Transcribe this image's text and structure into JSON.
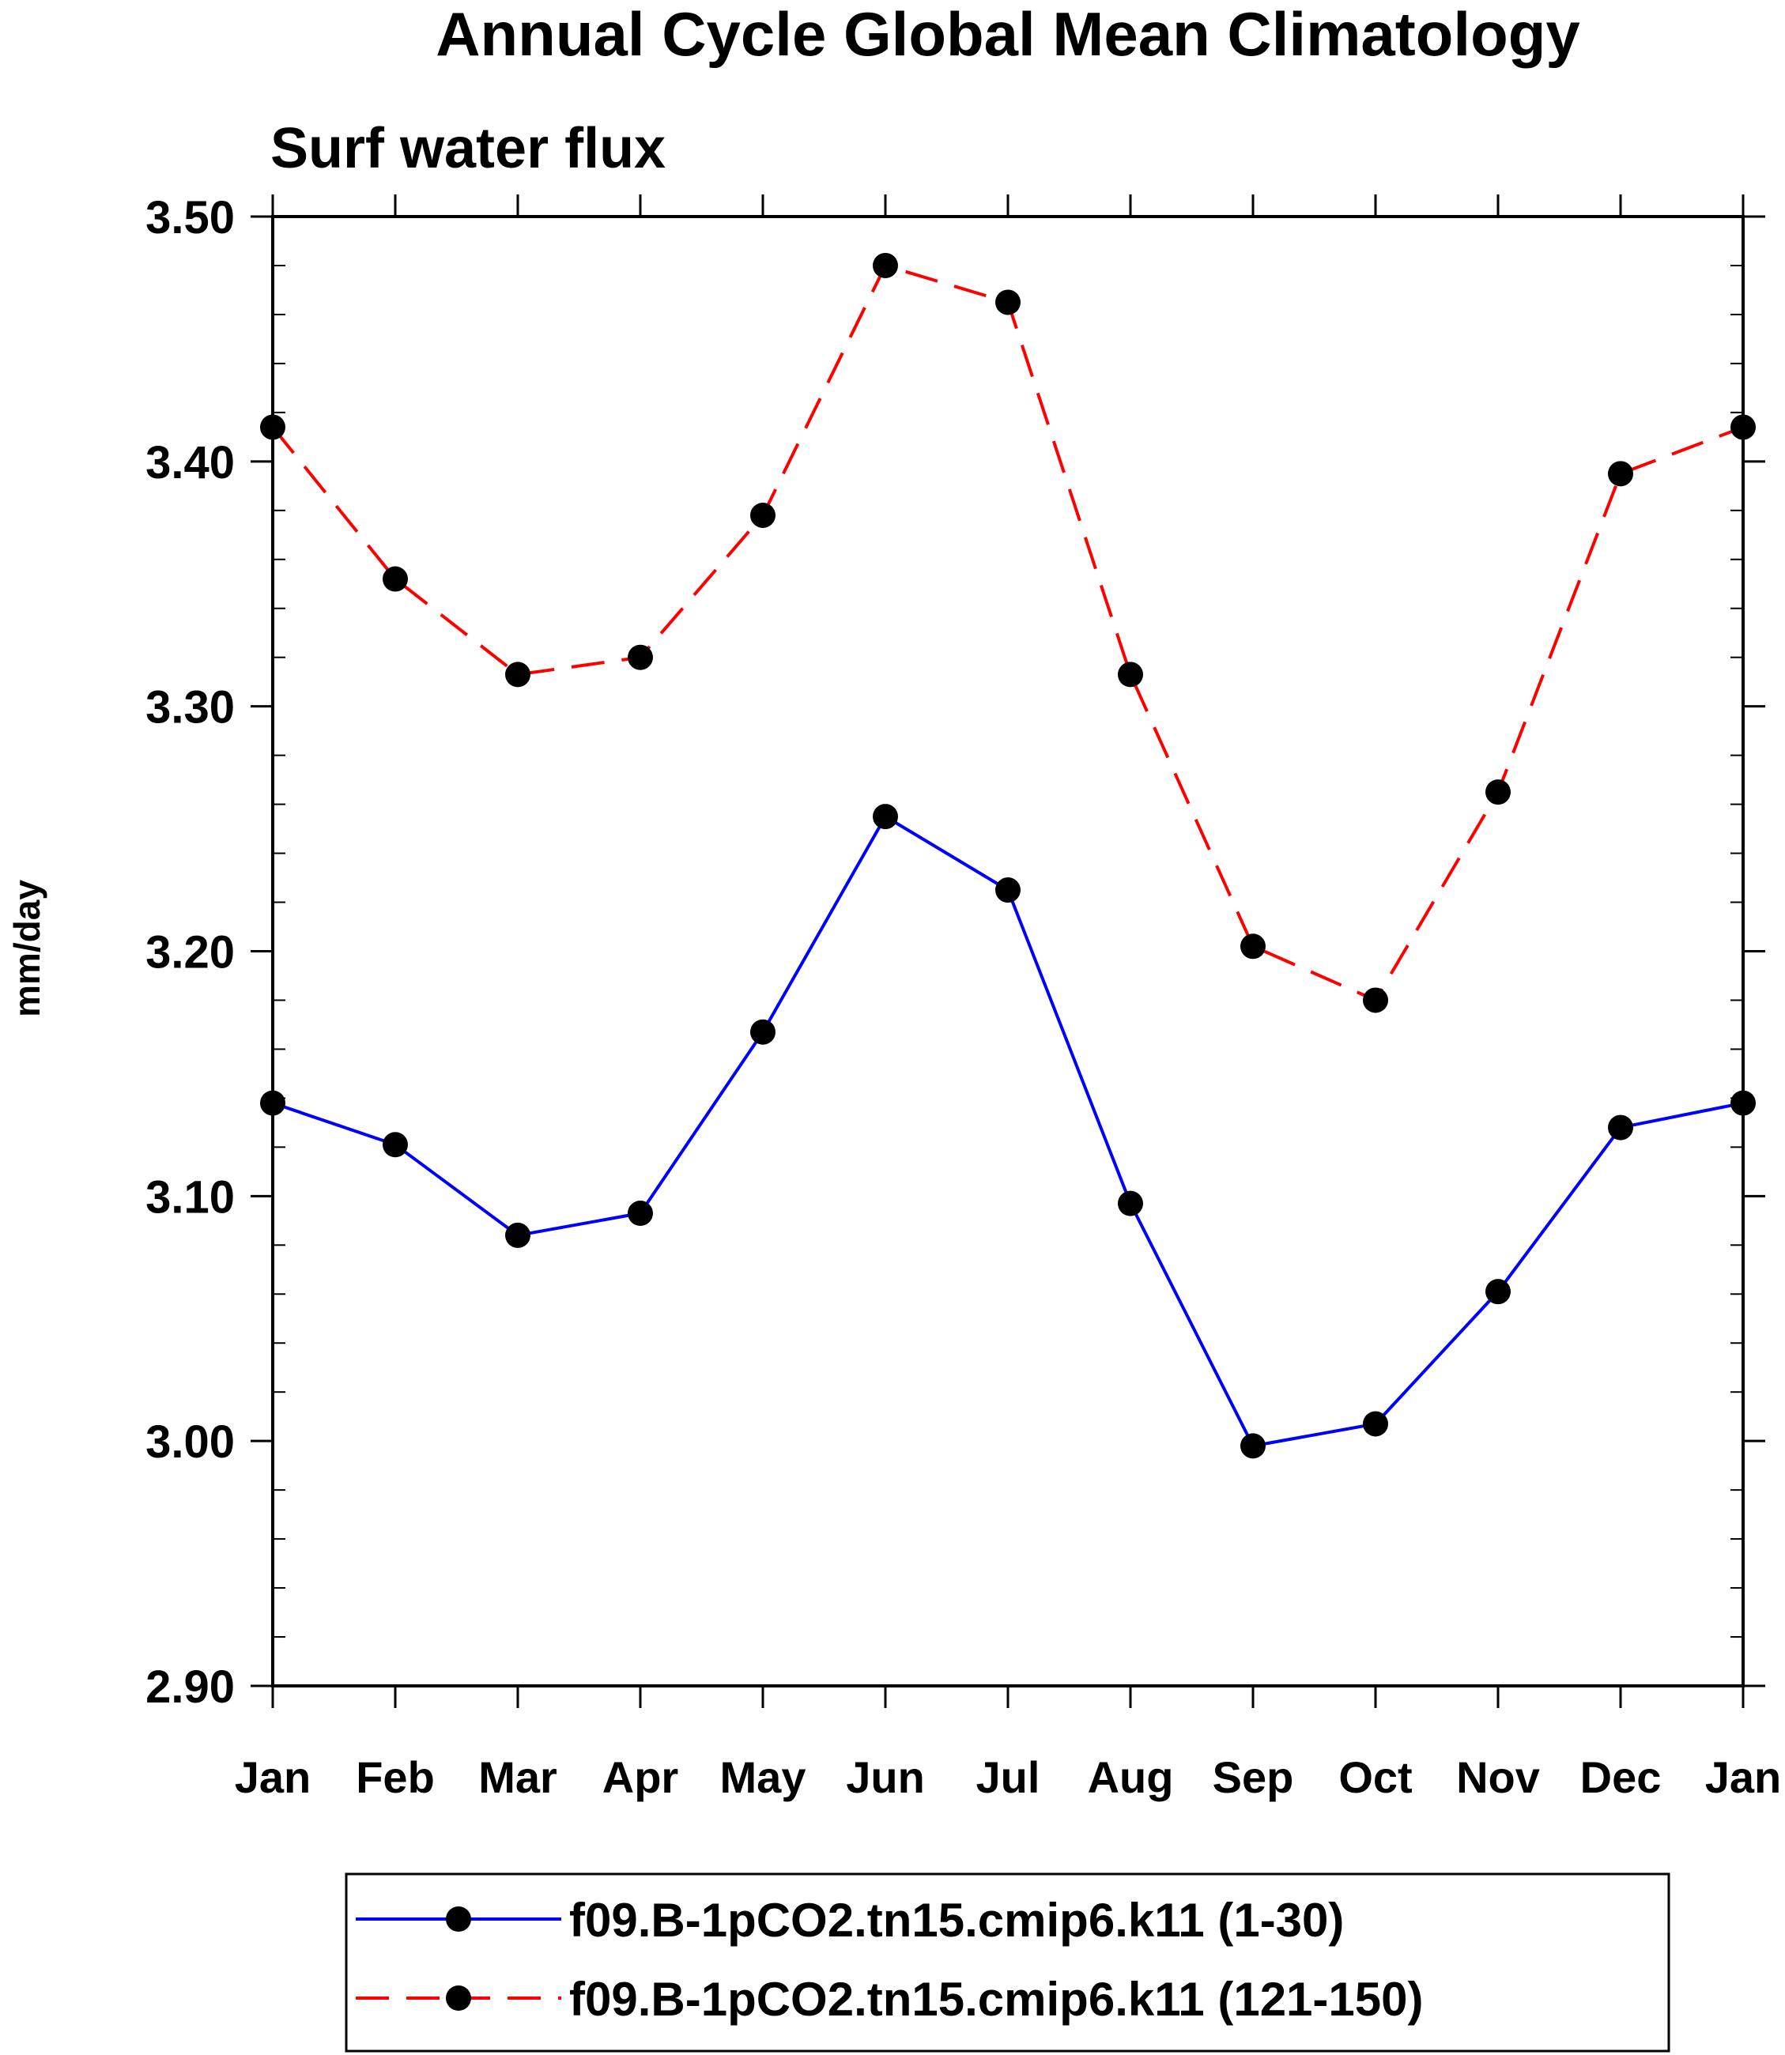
{
  "chart_data": {
    "type": "line",
    "title": "Annual Cycle Global Mean Climatology",
    "subtitle": "Surf water flux",
    "xlabel": "",
    "ylabel": "mm/day",
    "categories": [
      "Jan",
      "Feb",
      "Mar",
      "Apr",
      "May",
      "Jun",
      "Jul",
      "Aug",
      "Sep",
      "Oct",
      "Nov",
      "Dec",
      "Jan"
    ],
    "ylim": [
      2.9,
      3.5
    ],
    "yticks": [
      "2.90",
      "3.00",
      "3.10",
      "3.20",
      "3.30",
      "3.40",
      "3.50"
    ],
    "grid": false,
    "legend_position": "bottom",
    "series": [
      {
        "name": "f09.B-1pCO2.tn15.cmip6.k11 (1-30)",
        "color": "#0000ff",
        "line_style": "solid",
        "marker": "filled-circle",
        "values": [
          3.138,
          3.121,
          3.084,
          3.093,
          3.167,
          3.255,
          3.225,
          3.097,
          2.998,
          3.007,
          3.061,
          3.128,
          3.138
        ]
      },
      {
        "name": "f09.B-1pCO2.tn15.cmip6.k11 (121-150)",
        "color": "#ff0000",
        "line_style": "dashed",
        "marker": "filled-circle",
        "values": [
          3.414,
          3.352,
          3.313,
          3.32,
          3.378,
          3.48,
          3.465,
          3.313,
          3.202,
          3.18,
          3.265,
          3.395,
          3.414
        ]
      }
    ]
  }
}
